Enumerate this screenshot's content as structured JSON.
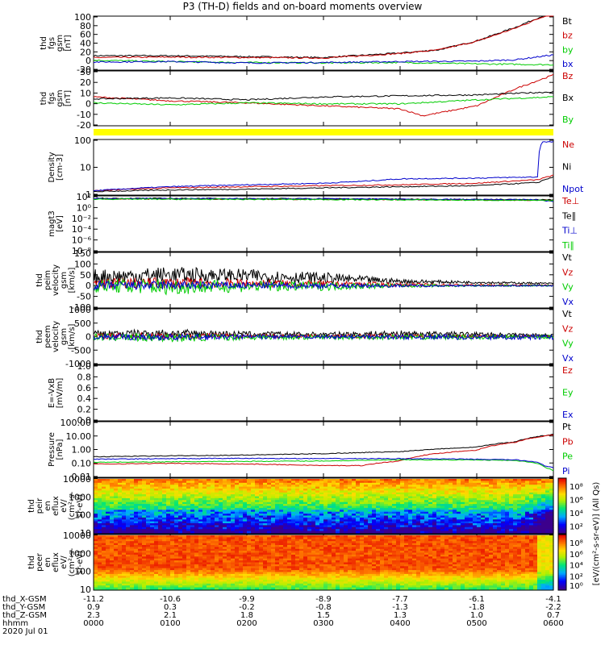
{
  "title": "P3 (TH-D) fields and on-board moments overview",
  "colors": {
    "black": "#000000",
    "red": "#cc0000",
    "green": "#00cc00",
    "blue": "#0000cc"
  },
  "chart_data": [
    {
      "type": "line",
      "ylabel": [
        "thd",
        "fgs",
        "gsm",
        "[nT]"
      ],
      "yticks": [
        "100",
        "80",
        "60",
        "40",
        "20",
        "0",
        "-20"
      ],
      "ylim": [
        -20,
        100
      ],
      "legend": [
        {
          "label": "Bt",
          "color": "black"
        },
        {
          "label": "bz",
          "color": "red"
        },
        {
          "label": "by",
          "color": "green"
        },
        {
          "label": "bx",
          "color": "blue"
        }
      ],
      "series": [
        {
          "name": "Bt",
          "color": "black",
          "x": [
            0,
            1,
            2,
            3,
            4,
            4.5,
            5,
            5.5,
            6
          ],
          "values": [
            12,
            12,
            10,
            8,
            18,
            25,
            45,
            75,
            110
          ]
        },
        {
          "name": "bz",
          "color": "red",
          "x": [
            0,
            1,
            2,
            3,
            4,
            4.5,
            5,
            5.5,
            6
          ],
          "values": [
            8,
            9,
            8,
            7,
            17,
            25,
            44,
            73,
            108
          ]
        },
        {
          "name": "by",
          "color": "green",
          "x": [
            0,
            1,
            2,
            3,
            4,
            5,
            6
          ],
          "values": [
            2,
            -1,
            -3,
            -4,
            -3,
            -6,
            -8
          ]
        },
        {
          "name": "bx",
          "color": "blue",
          "x": [
            0,
            1,
            2,
            3,
            4,
            5,
            5.5,
            6
          ],
          "values": [
            -2,
            -1,
            -4,
            -3,
            -1,
            0,
            3,
            14
          ]
        }
      ]
    },
    {
      "type": "line",
      "ylabel": [
        "thd",
        "fgs",
        "gsm",
        "[nT]"
      ],
      "yticks": [
        "30",
        "20",
        "10",
        "0",
        "-10",
        "-20"
      ],
      "ylim": [
        -25,
        30
      ],
      "legend": [
        {
          "label": "Bz",
          "color": "red"
        },
        {
          "label": "Bx",
          "color": "black"
        },
        {
          "label": "By",
          "color": "green"
        }
      ],
      "series": [
        {
          "name": "Bz",
          "color": "red",
          "x": [
            0,
            1,
            2,
            3,
            4,
            4.3,
            5,
            5.5,
            6
          ],
          "values": [
            4,
            0,
            -2,
            -5,
            -8,
            -15,
            -5,
            12,
            26
          ]
        },
        {
          "name": "Bx",
          "color": "black",
          "x": [
            0,
            1,
            2,
            3,
            4,
            5,
            6
          ],
          "values": [
            2,
            3,
            1,
            4,
            5,
            6,
            9
          ]
        },
        {
          "name": "By",
          "color": "green",
          "x": [
            0,
            1,
            2,
            3,
            4,
            5,
            6
          ],
          "values": [
            -2,
            -4,
            -2,
            -3,
            -3,
            1,
            4
          ]
        }
      ]
    },
    {
      "type": "line",
      "ylabel": [
        "Density",
        "[cm-3]"
      ],
      "yticks": [
        "100",
        "10",
        "1"
      ],
      "ylim": [
        0.3,
        200
      ],
      "yscale": "log",
      "legend": [
        {
          "label": "Ne",
          "color": "red"
        },
        {
          "label": "Ni",
          "color": "black"
        },
        {
          "label": "Npot",
          "color": "blue"
        }
      ],
      "series": [
        {
          "name": "Ne",
          "color": "red",
          "x": [
            0,
            1,
            2,
            3,
            4,
            5,
            5.8,
            6
          ],
          "values": [
            0.5,
            0.7,
            0.8,
            0.9,
            1.0,
            1.2,
            1.8,
            3
          ]
        },
        {
          "name": "Ni",
          "color": "black",
          "x": [
            0,
            1,
            2,
            3,
            4,
            5,
            5.8,
            6
          ],
          "values": [
            0.45,
            0.55,
            0.6,
            0.7,
            0.8,
            0.9,
            1.3,
            2.5
          ]
        },
        {
          "name": "Npot",
          "color": "blue",
          "x": [
            0,
            1,
            2,
            3,
            3.5,
            4,
            5,
            5.8,
            5.85,
            6
          ],
          "values": [
            0.5,
            0.8,
            1.0,
            1.2,
            1.5,
            2.0,
            2.2,
            2.5,
            150,
            150
          ]
        }
      ]
    },
    {
      "type": "line",
      "ylabel": [
        "magt3",
        "[eV]"
      ],
      "yticks": [
        "10²",
        "10⁰",
        "10⁻²",
        "10⁻⁴",
        "10⁻⁶",
        "10⁻⁸"
      ],
      "ylim": [
        -9,
        2.5
      ],
      "yscale": "log10-exponent",
      "legend": [
        {
          "label": "Te⊥",
          "color": "red"
        },
        {
          "label": "Te∥",
          "color": "black"
        },
        {
          "label": "Ti⊥",
          "color": "blue"
        },
        {
          "label": "Ti∥",
          "color": "green"
        }
      ],
      "series": [
        {
          "name": "Te⊥",
          "color": "red",
          "x": [
            0,
            3,
            6
          ],
          "values": [
            1.9,
            1.8,
            1.6
          ]
        },
        {
          "name": "Te∥",
          "color": "black",
          "x": [
            0,
            3,
            6
          ],
          "values": [
            2.0,
            1.9,
            1.7
          ]
        },
        {
          "name": "Ti⊥",
          "color": "blue",
          "x": [
            0,
            3,
            5.8,
            6
          ],
          "values": [
            1.95,
            1.9,
            1.7,
            1.3
          ]
        },
        {
          "name": "Ti∥",
          "color": "green",
          "x": [
            0,
            3,
            6
          ],
          "values": [
            1.85,
            1.75,
            1.55
          ]
        }
      ]
    },
    {
      "type": "line",
      "ylabel": [
        "thd",
        "peim",
        "velocity",
        "gsm",
        "[km/s]"
      ],
      "yticks": [
        "150",
        "100",
        "50",
        "0",
        "-50",
        "-100"
      ],
      "ylim": [
        -100,
        150
      ],
      "legend": [
        {
          "label": "Vt",
          "color": "black"
        },
        {
          "label": "Vz",
          "color": "red"
        },
        {
          "label": "Vy",
          "color": "green"
        },
        {
          "label": "Vx",
          "color": "blue"
        }
      ],
      "noisy": true,
      "series": [
        {
          "name": "Vt",
          "color": "black",
          "x": [
            0,
            1,
            2,
            3,
            4,
            5,
            6
          ],
          "values": [
            40,
            50,
            45,
            35,
            20,
            15,
            10
          ],
          "amp": [
            35,
            35,
            30,
            25,
            10,
            5,
            4
          ]
        },
        {
          "name": "Vz",
          "color": "red",
          "x": [
            0,
            1,
            2,
            3,
            4,
            5,
            6
          ],
          "values": [
            10,
            12,
            10,
            8,
            5,
            3,
            2
          ],
          "amp": [
            25,
            25,
            20,
            15,
            8,
            4,
            3
          ]
        },
        {
          "name": "Vy",
          "color": "green",
          "x": [
            0,
            1,
            2,
            3,
            4,
            5,
            6
          ],
          "values": [
            0,
            -5,
            -3,
            -2,
            0,
            0,
            0
          ],
          "amp": [
            30,
            35,
            25,
            20,
            8,
            4,
            3
          ]
        },
        {
          "name": "Vx",
          "color": "blue",
          "x": [
            0,
            1,
            2,
            3,
            4,
            5,
            6
          ],
          "values": [
            0,
            2,
            1,
            0,
            0,
            0,
            0
          ],
          "amp": [
            20,
            20,
            15,
            12,
            6,
            3,
            3
          ]
        }
      ]
    },
    {
      "type": "line",
      "ylabel": [
        "thd",
        "peem",
        "velocity",
        "gsm",
        "[km/s]"
      ],
      "yticks": [
        "1000",
        "500",
        "0",
        "-500",
        "-1000"
      ],
      "ylim": [
        -1000,
        1000
      ],
      "legend": [
        {
          "label": "Vt",
          "color": "black"
        },
        {
          "label": "Vz",
          "color": "red"
        },
        {
          "label": "Vy",
          "color": "green"
        },
        {
          "label": "Vx",
          "color": "blue"
        }
      ],
      "noisy": true,
      "series": [
        {
          "name": "Vt",
          "color": "black",
          "x": [
            0,
            1,
            2,
            3,
            4,
            5,
            6
          ],
          "values": [
            100,
            120,
            90,
            80,
            100,
            80,
            60
          ],
          "amp": [
            120,
            150,
            100,
            80,
            120,
            80,
            40
          ]
        },
        {
          "name": "Vz",
          "color": "red",
          "x": [
            0,
            1,
            2,
            3,
            4,
            5,
            6
          ],
          "values": [
            20,
            30,
            20,
            15,
            20,
            10,
            10
          ],
          "amp": [
            100,
            120,
            80,
            60,
            80,
            50,
            30
          ]
        },
        {
          "name": "Vy",
          "color": "green",
          "x": [
            0,
            1,
            2,
            3,
            4,
            5,
            6
          ],
          "values": [
            -20,
            -40,
            -20,
            -20,
            -10,
            -20,
            -10
          ],
          "amp": [
            120,
            150,
            100,
            80,
            100,
            80,
            60
          ]
        },
        {
          "name": "Vx",
          "color": "blue",
          "x": [
            0,
            1,
            2,
            3,
            4,
            5,
            6
          ],
          "values": [
            -10,
            -20,
            -10,
            -10,
            -10,
            -20,
            -20
          ],
          "amp": [
            100,
            120,
            80,
            60,
            80,
            100,
            80
          ]
        }
      ]
    },
    {
      "type": "line",
      "ylabel": [
        "E=-VxB",
        "[mV/m]"
      ],
      "yticks": [
        "1.0",
        "0.8",
        "0.6",
        "0.4",
        "0.2",
        "0.0"
      ],
      "ylim": [
        0,
        1
      ],
      "legend": [
        {
          "label": "Ez",
          "color": "red"
        },
        {
          "label": "Ey",
          "color": "green"
        },
        {
          "label": "Ex",
          "color": "blue"
        }
      ],
      "series": []
    },
    {
      "type": "line",
      "ylabel": [
        "Pressure",
        "[nPa]"
      ],
      "yticks": [
        "100.00",
        "10.00",
        "1.00",
        "0.10",
        "0.01"
      ],
      "ylim": [
        0.01,
        100
      ],
      "yscale": "log",
      "legend": [
        {
          "label": "Pt",
          "color": "black"
        },
        {
          "label": "Pb",
          "color": "red"
        },
        {
          "label": "Pe",
          "color": "green"
        },
        {
          "label": "Pi",
          "color": "blue"
        }
      ],
      "series": [
        {
          "name": "Pt",
          "color": "black",
          "x": [
            0,
            1,
            2,
            3,
            4,
            5,
            5.5,
            6
          ],
          "values": [
            0.3,
            0.35,
            0.4,
            0.5,
            0.7,
            1.5,
            3.5,
            12
          ]
        },
        {
          "name": "Pb",
          "color": "red",
          "x": [
            0,
            1,
            2,
            3,
            3.5,
            4,
            5,
            5.5,
            6
          ],
          "values": [
            0.09,
            0.1,
            0.09,
            0.07,
            0.07,
            0.15,
            0.9,
            3.2,
            11
          ]
        },
        {
          "name": "Pe",
          "color": "green",
          "x": [
            0,
            1,
            2,
            3,
            4,
            5,
            5.5,
            5.8,
            5.9,
            6
          ],
          "values": [
            0.12,
            0.13,
            0.14,
            0.15,
            0.18,
            0.18,
            0.16,
            0.1,
            0.05,
            0.03
          ]
        },
        {
          "name": "Pi",
          "color": "blue",
          "x": [
            0,
            1,
            2,
            3,
            4,
            5,
            5.5,
            5.8,
            5.9,
            6
          ],
          "values": [
            0.2,
            0.22,
            0.23,
            0.22,
            0.22,
            0.2,
            0.18,
            0.12,
            0.06,
            0.05
          ]
        }
      ]
    },
    {
      "type": "heatmap",
      "ylabel": [
        "thd",
        "peir",
        "en",
        "eflux",
        "eV/",
        "(cm²-s-",
        "sr-eV)"
      ],
      "yticks": [
        "10000",
        "1000",
        "100",
        "10"
      ],
      "yscale": "log",
      "ylim": [
        5,
        25000
      ]
    },
    {
      "type": "heatmap",
      "ylabel": [
        "thd",
        "peer",
        "en",
        "eflux",
        "eV/",
        "(cm²-s-",
        "sr-eV)"
      ],
      "yticks": [
        "10000",
        "1000",
        "100",
        "10"
      ],
      "yscale": "log",
      "ylim": [
        5,
        25000
      ]
    }
  ],
  "colorbars": [
    {
      "ticks": [
        "10⁸",
        "10⁶",
        "10⁴",
        "10²"
      ]
    },
    {
      "ticks": [
        "10⁸",
        "10⁶",
        "10⁴",
        "10²",
        "10⁰"
      ]
    }
  ],
  "colorbar_label": "[eV/(cm²-s-sr-eV)] (All Qs)",
  "xaxis": {
    "rows": [
      {
        "label": "thd_X-GSM",
        "values": [
          "-11.2",
          "-10.6",
          "-9.9",
          "-8.9",
          "-7.7",
          "-6.1",
          "-4.1"
        ]
      },
      {
        "label": "thd_Y-GSM",
        "values": [
          "0.9",
          "0.3",
          "-0.2",
          "-0.8",
          "-1.3",
          "-1.8",
          "-2.2"
        ]
      },
      {
        "label": "thd_Z-GSM",
        "values": [
          "2.3",
          "2.1",
          "1.8",
          "1.5",
          "1.3",
          "1.0",
          "0.7"
        ]
      },
      {
        "label": "hhmm",
        "values": [
          "0000",
          "0100",
          "0200",
          "0300",
          "0400",
          "0500",
          "0600"
        ]
      }
    ],
    "date": "2020 Jul 01"
  }
}
